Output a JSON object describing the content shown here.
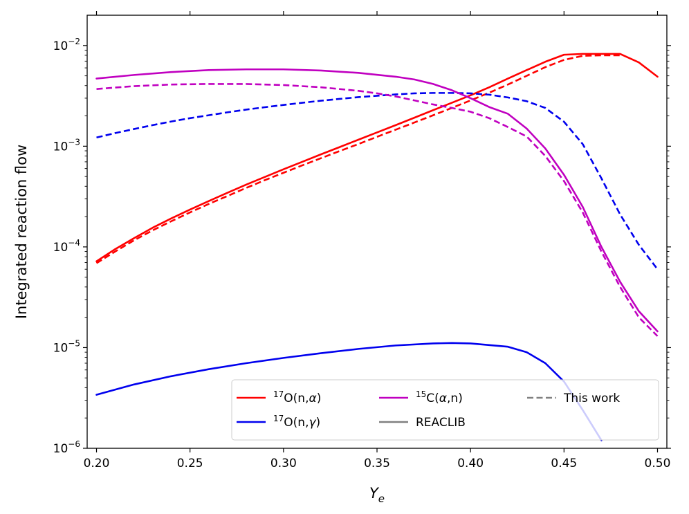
{
  "chart_data": {
    "type": "line",
    "title": "",
    "xlabel": "Y",
    "xlabel_sub": "e",
    "ylabel": "Integrated reaction flow",
    "xlim": [
      0.195,
      0.505
    ],
    "ylim": [
      1e-06,
      0.02
    ],
    "yscale": "log",
    "grid": false,
    "legend_position": "lower-right",
    "x_ticks": [
      0.2,
      0.25,
      0.3,
      0.35,
      0.4,
      0.45,
      0.5
    ],
    "x_tick_labels": [
      "0.20",
      "0.25",
      "0.30",
      "0.35",
      "0.40",
      "0.45",
      "0.50"
    ],
    "y_ticks": [
      1e-06,
      1e-05,
      0.0001,
      0.001,
      0.01
    ],
    "y_tick_labels": [
      {
        "base": "10",
        "exp": "−6"
      },
      {
        "base": "10",
        "exp": "−5"
      },
      {
        "base": "10",
        "exp": "−4"
      },
      {
        "base": "10",
        "exp": "−3"
      },
      {
        "base": "10",
        "exp": "−2"
      }
    ],
    "series": [
      {
        "name": "17O(n,alpha) REACLIB",
        "reaction": "17O(n,α)",
        "color": "#ff0000",
        "dash": "solid",
        "x": [
          0.2,
          0.21,
          0.22,
          0.23,
          0.24,
          0.25,
          0.26,
          0.27,
          0.28,
          0.29,
          0.3,
          0.31,
          0.32,
          0.33,
          0.34,
          0.35,
          0.36,
          0.37,
          0.38,
          0.39,
          0.4,
          0.41,
          0.42,
          0.43,
          0.44,
          0.45,
          0.46,
          0.47,
          0.48,
          0.49,
          0.5
        ],
        "y": [
          7.2e-05,
          9.5e-05,
          0.000122,
          0.000155,
          0.000192,
          0.000235,
          0.000285,
          0.000345,
          0.000415,
          0.000495,
          0.00059,
          0.0007,
          0.00083,
          0.00098,
          0.00116,
          0.00137,
          0.00162,
          0.00192,
          0.00228,
          0.0027,
          0.0032,
          0.00385,
          0.0047,
          0.0057,
          0.0069,
          0.0081,
          0.00825,
          0.00825,
          0.00825,
          0.0068,
          0.0049
        ]
      },
      {
        "name": "17O(n,alpha) This work",
        "reaction": "17O(n,α)",
        "color": "#ff0000",
        "dash": "dashed",
        "x": [
          0.2,
          0.21,
          0.22,
          0.23,
          0.24,
          0.25,
          0.26,
          0.27,
          0.28,
          0.29,
          0.3,
          0.31,
          0.32,
          0.33,
          0.34,
          0.35,
          0.36,
          0.37,
          0.38,
          0.39,
          0.4,
          0.41,
          0.42,
          0.43,
          0.44,
          0.45,
          0.46,
          0.47,
          0.48
        ],
        "y": [
          6.9e-05,
          9e-05,
          0.000116,
          0.000146,
          0.00018,
          0.00022,
          0.000267,
          0.00032,
          0.000385,
          0.00046,
          0.000545,
          0.000645,
          0.00076,
          0.000895,
          0.00105,
          0.00124,
          0.00146,
          0.00172,
          0.00203,
          0.0024,
          0.00285,
          0.0034,
          0.0041,
          0.005,
          0.0061,
          0.0072,
          0.0079,
          0.008,
          0.008
        ]
      },
      {
        "name": "17O(n,gamma) REACLIB",
        "reaction": "17O(n,γ)",
        "color": "#0000ee",
        "dash": "solid",
        "x": [
          0.2,
          0.22,
          0.24,
          0.26,
          0.28,
          0.3,
          0.32,
          0.34,
          0.36,
          0.38,
          0.39,
          0.4,
          0.42,
          0.43,
          0.44,
          0.45,
          0.46,
          0.47
        ],
        "y": [
          3.4e-06,
          4.3e-06,
          5.2e-06,
          6.1e-06,
          7e-06,
          7.9e-06,
          8.8e-06,
          9.7e-06,
          1.05e-05,
          1.1e-05,
          1.11e-05,
          1.1e-05,
          1.02e-05,
          9e-06,
          7e-06,
          4.6e-06,
          2.4e-06,
          1.2e-06
        ]
      },
      {
        "name": "17O(n,gamma) This work",
        "reaction": "17O(n,γ)",
        "color": "#0000ee",
        "dash": "dashed",
        "x": [
          0.2,
          0.21,
          0.22,
          0.23,
          0.24,
          0.25,
          0.26,
          0.27,
          0.28,
          0.29,
          0.3,
          0.31,
          0.32,
          0.33,
          0.34,
          0.35,
          0.36,
          0.37,
          0.38,
          0.39,
          0.4,
          0.41,
          0.42,
          0.43,
          0.44,
          0.45,
          0.46,
          0.47,
          0.48,
          0.49,
          0.5
        ],
        "y": [
          0.00122,
          0.00135,
          0.00148,
          0.00162,
          0.00176,
          0.0019,
          0.00203,
          0.00217,
          0.00231,
          0.00244,
          0.00257,
          0.0027,
          0.00283,
          0.00295,
          0.00307,
          0.00317,
          0.00327,
          0.00335,
          0.00338,
          0.00338,
          0.00335,
          0.00325,
          0.00305,
          0.0028,
          0.0024,
          0.00175,
          0.00105,
          0.00048,
          0.00021,
          0.000105,
          6e-05
        ]
      },
      {
        "name": "15C(alpha,n) REACLIB",
        "reaction": "15C(α,n)",
        "color": "#c000c0",
        "dash": "solid",
        "x": [
          0.2,
          0.22,
          0.24,
          0.26,
          0.28,
          0.3,
          0.32,
          0.34,
          0.36,
          0.37,
          0.38,
          0.39,
          0.4,
          0.41,
          0.42,
          0.43,
          0.44,
          0.45,
          0.46,
          0.47,
          0.48,
          0.49,
          0.5
        ],
        "y": [
          0.0047,
          0.0051,
          0.00545,
          0.0057,
          0.0058,
          0.0058,
          0.00565,
          0.00535,
          0.0049,
          0.0046,
          0.00415,
          0.0036,
          0.003,
          0.00245,
          0.0021,
          0.0015,
          0.00095,
          0.00052,
          0.00025,
          0.0001,
          4.5e-05,
          2.3e-05,
          1.45e-05
        ]
      },
      {
        "name": "15C(alpha,n) This work",
        "reaction": "15C(α,n)",
        "color": "#c000c0",
        "dash": "dashed",
        "x": [
          0.2,
          0.22,
          0.24,
          0.26,
          0.28,
          0.3,
          0.32,
          0.34,
          0.35,
          0.36,
          0.37,
          0.38,
          0.39,
          0.4,
          0.41,
          0.42,
          0.43,
          0.44,
          0.45,
          0.46,
          0.47,
          0.48,
          0.49,
          0.5
        ],
        "y": [
          0.0037,
          0.00395,
          0.0041,
          0.00415,
          0.00415,
          0.00405,
          0.00385,
          0.00355,
          0.00335,
          0.00312,
          0.00285,
          0.0026,
          0.0024,
          0.0022,
          0.0019,
          0.00155,
          0.00125,
          0.0008,
          0.00045,
          0.00022,
          9e-05,
          4e-05,
          2e-05,
          1.3e-05
        ]
      }
    ],
    "legend": [
      {
        "label_sup": "17",
        "label_main": "O(n,",
        "label_greek": "α",
        "label_end": ")",
        "color": "#ff0000",
        "dash": "solid"
      },
      {
        "label_sup": "17",
        "label_main": "O(n,",
        "label_greek": "γ",
        "label_end": ")",
        "color": "#0000ee",
        "dash": "solid"
      },
      {
        "label_sup": "15",
        "label_main": "C(",
        "label_greek": "α",
        "label_end": ",n)",
        "color": "#c000c0",
        "dash": "solid"
      },
      {
        "label_sup": "",
        "label_main": "REACLIB",
        "label_greek": "",
        "label_end": "",
        "color": "#808080",
        "dash": "solid"
      },
      {
        "label_sup": "",
        "label_main": "This work",
        "label_greek": "",
        "label_end": "",
        "color": "#808080",
        "dash": "dashed"
      }
    ]
  }
}
